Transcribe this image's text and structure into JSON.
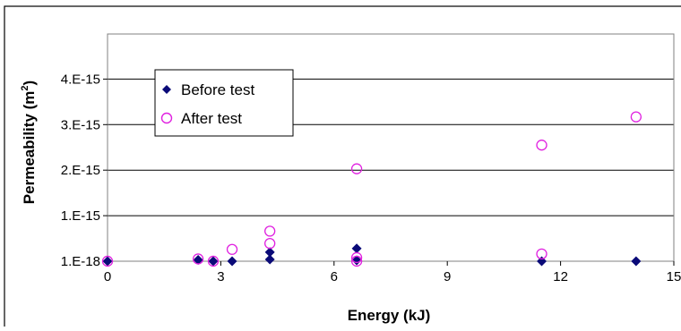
{
  "chart_data": {
    "type": "scatter",
    "title": "",
    "xlabel": "Energy (kJ)",
    "ylabel_main": "Permeability (m",
    "ylabel_sup": "2",
    "ylabel_close": ")",
    "xlim": [
      0,
      15
    ],
    "ylim": [
      -1e-05,
      4.99
    ],
    "x_ticks": [
      {
        "value": 0,
        "label": "0"
      },
      {
        "value": 3,
        "label": "3"
      },
      {
        "value": 6,
        "label": "6"
      },
      {
        "value": 9,
        "label": "9"
      },
      {
        "value": 12,
        "label": "12"
      },
      {
        "value": 15,
        "label": "15"
      }
    ],
    "y_ticks": [
      {
        "value": 0.001,
        "label": "1.E-18"
      },
      {
        "value": 1,
        "label": "1.E-15"
      },
      {
        "value": 2,
        "label": "2.E-15"
      },
      {
        "value": 3,
        "label": "3.E-15"
      },
      {
        "value": 4,
        "label": "4.E-15"
      }
    ],
    "y_unit_note": "y values in units of 1e-15 m^2",
    "grid": "horizontal major gridlines",
    "legend_position": "upper-left inside plot",
    "series": [
      {
        "name": "Before test",
        "marker": "diamond",
        "color": "#0a0a78",
        "points": [
          {
            "x": 0.0,
            "y": 0.001
          },
          {
            "x": 2.4,
            "y": 0.03
          },
          {
            "x": 2.8,
            "y": 0.001
          },
          {
            "x": 3.3,
            "y": 0.001
          },
          {
            "x": 4.3,
            "y": 0.2
          },
          {
            "x": 4.3,
            "y": 0.04
          },
          {
            "x": 6.6,
            "y": 0.28
          },
          {
            "x": 6.6,
            "y": 0.02
          },
          {
            "x": 11.5,
            "y": 0.001
          },
          {
            "x": 14.0,
            "y": 0.001
          }
        ]
      },
      {
        "name": "After test",
        "marker": "circle-open",
        "color": "#e020e0",
        "points": [
          {
            "x": 0.0,
            "y": 0.001
          },
          {
            "x": 2.4,
            "y": 0.05
          },
          {
            "x": 2.8,
            "y": 0.001
          },
          {
            "x": 3.3,
            "y": 0.26
          },
          {
            "x": 4.3,
            "y": 0.66
          },
          {
            "x": 4.3,
            "y": 0.39
          },
          {
            "x": 6.6,
            "y": 2.03
          },
          {
            "x": 6.6,
            "y": 0.08
          },
          {
            "x": 6.6,
            "y": 0.001
          },
          {
            "x": 11.5,
            "y": 2.55
          },
          {
            "x": 11.5,
            "y": 0.16
          },
          {
            "x": 14.0,
            "y": 3.17
          }
        ]
      }
    ]
  }
}
